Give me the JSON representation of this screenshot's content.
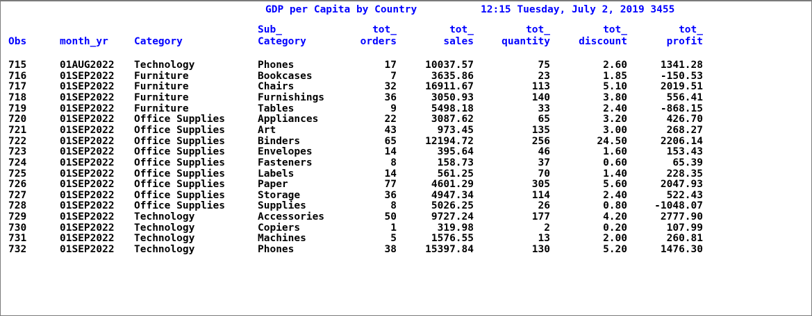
{
  "title": {
    "text": "GDP per Capita by Country",
    "stamp": "12:15 Tuesday, July 2, 2019 3455"
  },
  "headers": {
    "obs": [
      "",
      "Obs"
    ],
    "month_yr": [
      "",
      "month_yr"
    ],
    "category": [
      "",
      "Category"
    ],
    "sub_category": [
      "Sub_",
      "Category"
    ],
    "tot_orders": [
      "tot_",
      "orders"
    ],
    "tot_sales": [
      "tot_",
      "sales"
    ],
    "tot_quantity": [
      "tot_",
      "quantity"
    ],
    "tot_discount": [
      "tot_",
      "discount"
    ],
    "tot_profit": [
      "tot_",
      "profit"
    ]
  },
  "rows": [
    [
      "715",
      "01AUG2022",
      "Technology",
      "Phones",
      "17",
      "10037.57",
      "75",
      "2.60",
      "1341.28"
    ],
    [
      "716",
      "01SEP2022",
      "Furniture",
      "Bookcases",
      "7",
      "3635.86",
      "23",
      "1.85",
      "-150.53"
    ],
    [
      "717",
      "01SEP2022",
      "Furniture",
      "Chairs",
      "32",
      "16911.67",
      "113",
      "5.10",
      "2019.51"
    ],
    [
      "718",
      "01SEP2022",
      "Furniture",
      "Furnishings",
      "36",
      "3050.93",
      "140",
      "3.80",
      "556.41"
    ],
    [
      "719",
      "01SEP2022",
      "Furniture",
      "Tables",
      "9",
      "5498.18",
      "33",
      "2.40",
      "-868.15"
    ],
    [
      "720",
      "01SEP2022",
      "Office Supplies",
      "Appliances",
      "22",
      "3087.62",
      "65",
      "3.20",
      "426.70"
    ],
    [
      "721",
      "01SEP2022",
      "Office Supplies",
      "Art",
      "43",
      "973.45",
      "135",
      "3.00",
      "268.27"
    ],
    [
      "722",
      "01SEP2022",
      "Office Supplies",
      "Binders",
      "65",
      "12194.72",
      "256",
      "24.50",
      "2206.14"
    ],
    [
      "723",
      "01SEP2022",
      "Office Supplies",
      "Envelopes",
      "14",
      "395.64",
      "46",
      "1.60",
      "153.43"
    ],
    [
      "724",
      "01SEP2022",
      "Office Supplies",
      "Fasteners",
      "8",
      "158.73",
      "37",
      "0.60",
      "65.39"
    ],
    [
      "725",
      "01SEP2022",
      "Office Supplies",
      "Labels",
      "14",
      "561.25",
      "70",
      "1.40",
      "228.35"
    ],
    [
      "726",
      "01SEP2022",
      "Office Supplies",
      "Paper",
      "77",
      "4601.29",
      "305",
      "5.60",
      "2047.93"
    ],
    [
      "727",
      "01SEP2022",
      "Office Supplies",
      "Storage",
      "36",
      "4947.34",
      "114",
      "2.40",
      "522.43"
    ],
    [
      "728",
      "01SEP2022",
      "Office Supplies",
      "Supplies",
      "8",
      "5026.25",
      "26",
      "0.80",
      "-1048.07"
    ],
    [
      "729",
      "01SEP2022",
      "Technology",
      "Accessories",
      "50",
      "9727.24",
      "177",
      "4.20",
      "2777.90"
    ],
    [
      "730",
      "01SEP2022",
      "Technology",
      "Copiers",
      "1",
      "319.98",
      "2",
      "0.20",
      "107.99"
    ],
    [
      "731",
      "01SEP2022",
      "Technology",
      "Machines",
      "5",
      "1576.55",
      "13",
      "2.00",
      "260.81"
    ],
    [
      "732",
      "01SEP2022",
      "Technology",
      "Phones",
      "38",
      "15397.84",
      "130",
      "5.20",
      "1476.30"
    ]
  ],
  "colors": {
    "header": "#0000ff",
    "text": "#000000",
    "background": "#ffffff"
  }
}
